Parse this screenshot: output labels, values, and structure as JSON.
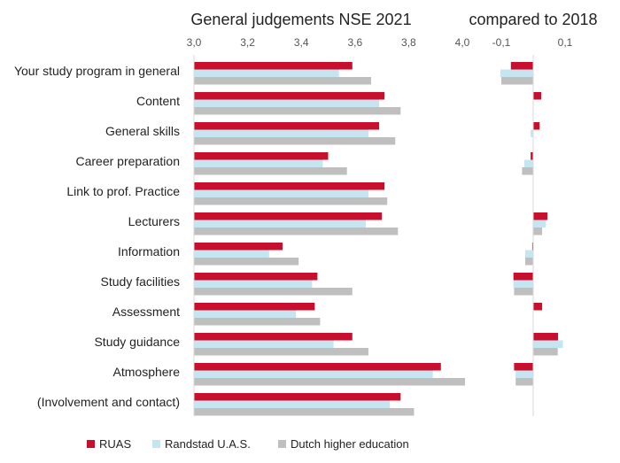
{
  "colors": {
    "ruas": "#c8102e",
    "randstad": "#c5e5f0",
    "dutch": "#bfbfbf"
  },
  "chart_data": [
    {
      "type": "bar",
      "orientation": "horizontal",
      "title": "General judgements NSE 2021",
      "xlim": [
        3.0,
        4.0
      ],
      "xticks": [
        "3,0",
        "3,2",
        "3,4",
        "3,6",
        "3,8",
        "4,0"
      ],
      "categories": [
        "Your study program in general",
        "Content",
        "General skills",
        "Career preparation",
        "Link to prof. Practice",
        "Lecturers",
        "Information",
        "Study facilities",
        "Assessment",
        "Study guidance",
        "Atmosphere",
        "(Involvement and contact)"
      ],
      "series": [
        {
          "name": "RUAS",
          "values": [
            3.59,
            3.71,
            3.69,
            3.5,
            3.71,
            3.7,
            3.33,
            3.46,
            3.45,
            3.59,
            3.92,
            3.77
          ]
        },
        {
          "name": "Randstad U.A.S.",
          "values": [
            3.54,
            3.69,
            3.65,
            3.48,
            3.65,
            3.64,
            3.28,
            3.44,
            3.38,
            3.52,
            3.89,
            3.73
          ]
        },
        {
          "name": "Dutch higher education",
          "values": [
            3.66,
            3.77,
            3.75,
            3.57,
            3.72,
            3.76,
            3.39,
            3.59,
            3.47,
            3.65,
            4.01,
            3.82
          ]
        }
      ],
      "legend": "bottom"
    },
    {
      "type": "bar",
      "orientation": "horizontal",
      "title": "compared to 2018",
      "xlim": [
        -0.2,
        0.2
      ],
      "xticks": [
        "-0,1",
        "0,1"
      ],
      "xtick_values": [
        -0.1,
        0.1
      ],
      "series": [
        {
          "name": "RUAS",
          "values": [
            -0.07,
            0.025,
            0.02,
            -0.008,
            0.0,
            0.045,
            -0.003,
            -0.062,
            0.028,
            0.078,
            -0.06,
            0.0
          ]
        },
        {
          "name": "Randstad U.A.S.",
          "values": [
            -0.103,
            0.0,
            -0.008,
            -0.028,
            0.0,
            0.04,
            -0.025,
            -0.062,
            0.0,
            0.093,
            -0.055,
            0.0
          ]
        },
        {
          "name": "Dutch higher education",
          "values": [
            -0.1,
            0.0,
            0.0,
            -0.035,
            0.0,
            0.028,
            -0.025,
            -0.06,
            0.0,
            0.077,
            -0.055,
            0.0
          ]
        }
      ]
    }
  ]
}
